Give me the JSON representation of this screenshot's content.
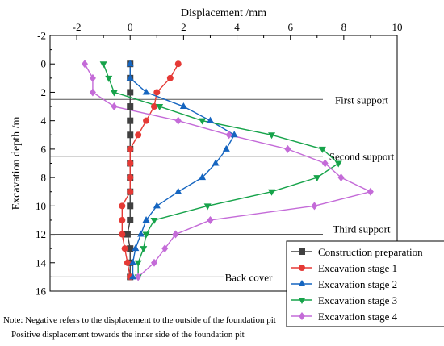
{
  "chart_data": {
    "type": "line",
    "orientation": "depth-profile",
    "xlabel": "Displacement /mm",
    "ylabel": "Excavation depth /m",
    "xlim": [
      -3,
      10
    ],
    "ylim": [
      -2,
      16
    ],
    "y_inverted": true,
    "x_axis_position": "top",
    "x_ticks": [
      -2,
      0,
      2,
      4,
      6,
      8,
      10
    ],
    "y_ticks": [
      -2,
      0,
      2,
      4,
      6,
      8,
      10,
      12,
      14,
      16
    ],
    "grid": false,
    "legend_position": "bottom-right",
    "reference_lines": [
      {
        "label": "First support",
        "y": 2.5
      },
      {
        "label": "Second support",
        "y": 6.5
      },
      {
        "label": "Third support",
        "y": 12
      },
      {
        "label": "Back cover",
        "y": 15
      }
    ],
    "series": [
      {
        "name": "Construction preparation",
        "color": "#404040",
        "marker": "square",
        "points": [
          [
            0,
            0
          ],
          [
            0,
            1
          ],
          [
            0,
            2
          ],
          [
            0,
            3
          ],
          [
            0,
            4
          ],
          [
            0,
            5
          ],
          [
            0,
            6
          ],
          [
            0,
            7
          ],
          [
            0,
            8
          ],
          [
            0,
            9
          ],
          [
            0,
            10
          ],
          [
            0,
            11
          ],
          [
            -0.1,
            12
          ],
          [
            0,
            13
          ],
          [
            0,
            14
          ],
          [
            0,
            15
          ]
        ]
      },
      {
        "name": "Excavation stage 1",
        "color": "#e53935",
        "marker": "circle",
        "points": [
          [
            1.8,
            0
          ],
          [
            1.5,
            1
          ],
          [
            1.0,
            2
          ],
          [
            0.9,
            3
          ],
          [
            0.6,
            4
          ],
          [
            0.3,
            5
          ],
          [
            0,
            6
          ],
          [
            0,
            7
          ],
          [
            0,
            8
          ],
          [
            0,
            9
          ],
          [
            -0.3,
            10
          ],
          [
            -0.3,
            11
          ],
          [
            -0.3,
            12
          ],
          [
            -0.2,
            13
          ],
          [
            -0.1,
            14
          ],
          [
            0,
            15
          ]
        ]
      },
      {
        "name": "Excavation stage 2",
        "color": "#1565c0",
        "marker": "triangle-up",
        "points": [
          [
            0,
            0
          ],
          [
            0,
            1
          ],
          [
            0.6,
            2
          ],
          [
            2,
            3
          ],
          [
            3,
            4
          ],
          [
            3.9,
            5
          ],
          [
            3.6,
            6
          ],
          [
            3.2,
            7
          ],
          [
            2.7,
            8
          ],
          [
            1.8,
            9
          ],
          [
            1.0,
            10
          ],
          [
            0.6,
            11
          ],
          [
            0.4,
            12
          ],
          [
            0.2,
            13
          ],
          [
            0.1,
            14
          ],
          [
            0.1,
            15
          ]
        ]
      },
      {
        "name": "Excavation stage 3",
        "color": "#16a34a",
        "marker": "triangle-down",
        "points": [
          [
            -1,
            0
          ],
          [
            -0.8,
            1
          ],
          [
            -0.6,
            2
          ],
          [
            1.1,
            3
          ],
          [
            2.7,
            4
          ],
          [
            5.3,
            5
          ],
          [
            7.2,
            6
          ],
          [
            7.8,
            7
          ],
          [
            7,
            8
          ],
          [
            5.3,
            9
          ],
          [
            2.9,
            10
          ],
          [
            0.9,
            11
          ],
          [
            0.6,
            12
          ],
          [
            0.5,
            13
          ],
          [
            0.3,
            14
          ],
          [
            0.3,
            15
          ]
        ]
      },
      {
        "name": "Excavation stage 4",
        "color": "#c46bd8",
        "marker": "diamond",
        "points": [
          [
            -1.7,
            0
          ],
          [
            -1.4,
            1
          ],
          [
            -1.4,
            2
          ],
          [
            -0.6,
            3
          ],
          [
            1.8,
            4
          ],
          [
            3.7,
            5
          ],
          [
            5.9,
            6
          ],
          [
            7.3,
            7
          ],
          [
            7.9,
            8
          ],
          [
            9.0,
            9
          ],
          [
            6.9,
            10
          ],
          [
            3.0,
            11
          ],
          [
            1.7,
            12
          ],
          [
            1.3,
            13
          ],
          [
            0.9,
            14
          ],
          [
            0.3,
            15
          ]
        ]
      }
    ]
  },
  "notes": {
    "line1": "Note: Negative refers to the displacement to the outside of the foundation pit",
    "line2": "Positive displacement towards the inner side of the foundation pit"
  }
}
